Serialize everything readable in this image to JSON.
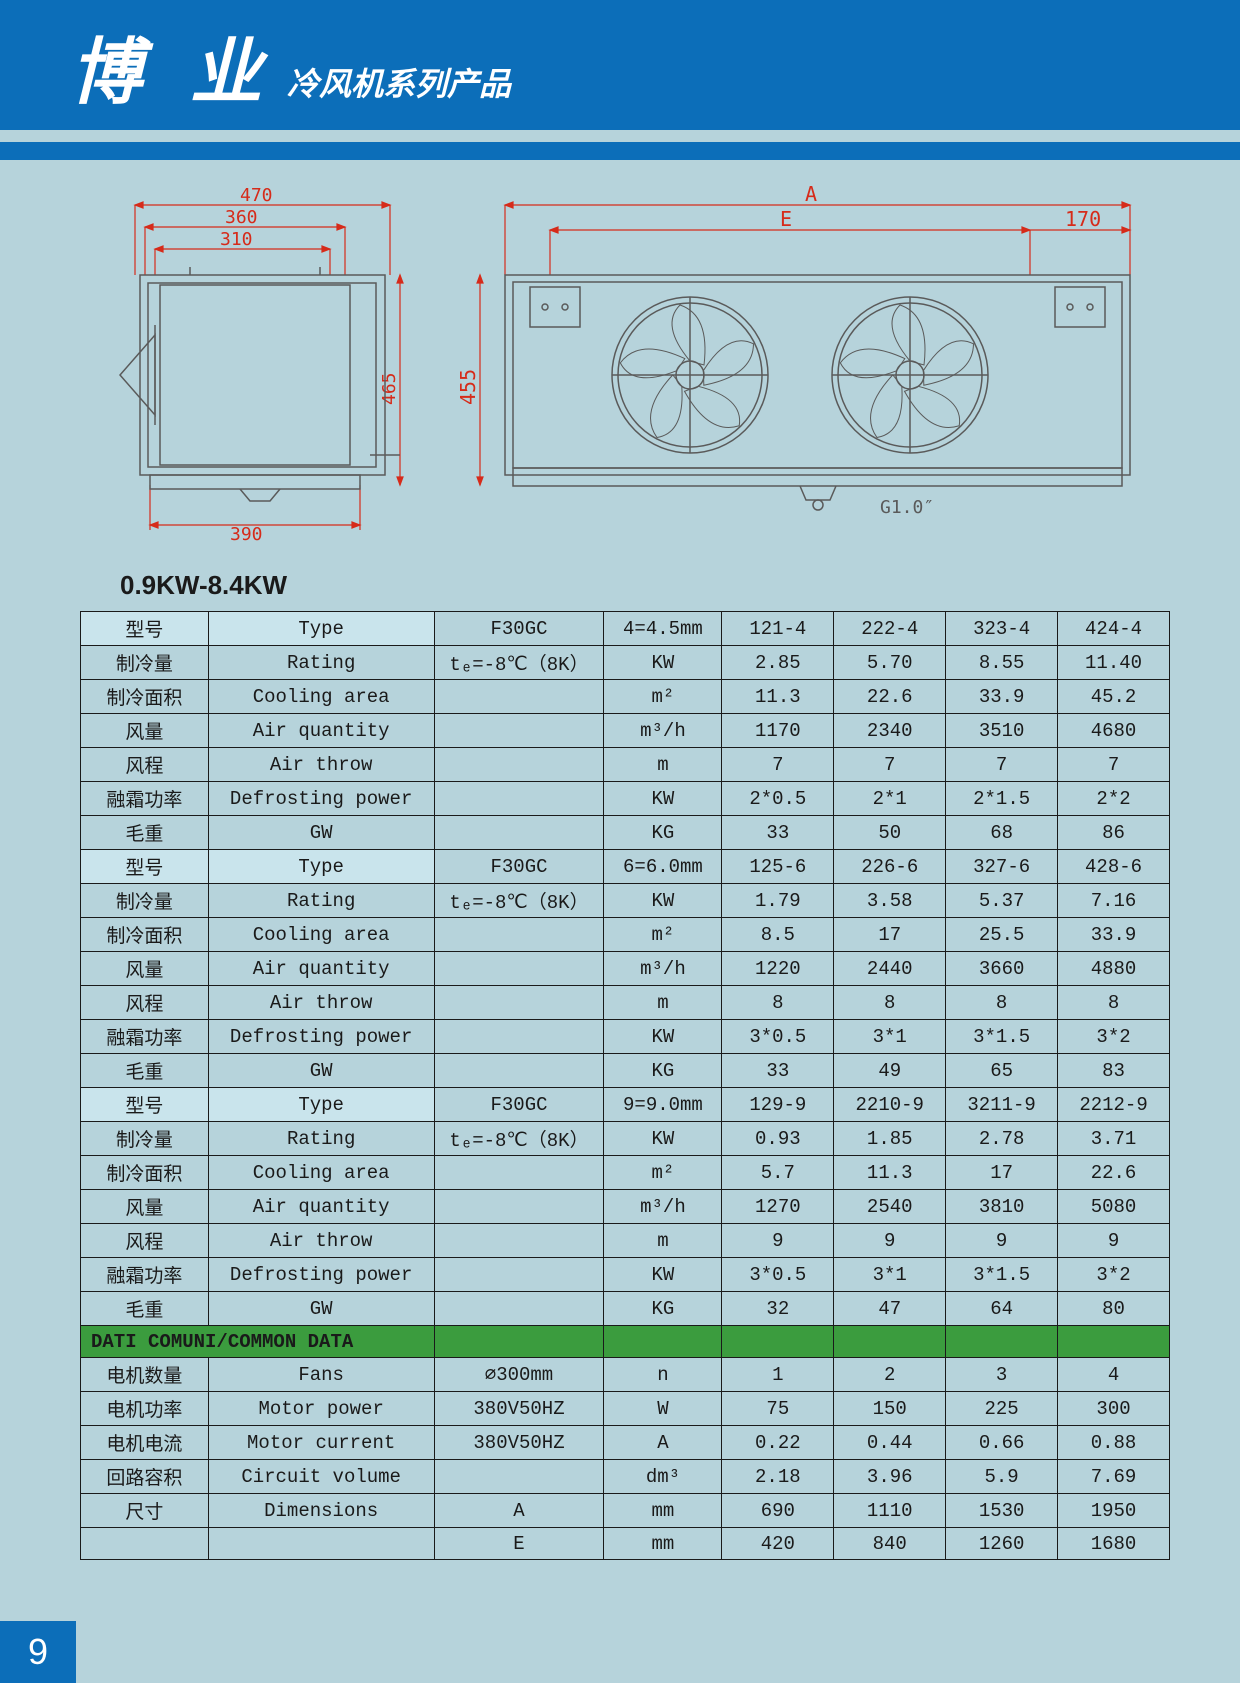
{
  "header": {
    "brand": "博 业",
    "sub": "冷风机系列产品"
  },
  "table_title": "0.9KW-8.4KW",
  "page_number": "9",
  "diagram_left": {
    "dim_470": "470",
    "dim_360": "360",
    "dim_310": "310",
    "dim_465": "465",
    "dim_390": "390"
  },
  "diagram_right": {
    "dim_A": "A",
    "dim_E": "E",
    "dim_170": "170",
    "dim_455": "455",
    "dim_G": "G1.0″"
  },
  "colors": {
    "dim_color": "#d62b1a",
    "drawing_color": "#5a5a5a",
    "header_bg": "#0c6eb9",
    "page_bg": "#b6d3db",
    "type_bg": "#c9e4ec",
    "common_bg": "#3b9c3e"
  },
  "table": {
    "rows": [
      {
        "style": "type",
        "c0": "型号",
        "c1": "Type",
        "c2": "F30GC",
        "c3": "4=4.5mm",
        "c4": "121-4",
        "c5": "222-4",
        "c6": "323-4",
        "c7": "424-4"
      },
      {
        "style": "",
        "c0": "制冷量",
        "c1": "Rating",
        "c2": "tₑ=-8℃（8K）",
        "c3": "KW",
        "c4": "2.85",
        "c5": "5.70",
        "c6": "8.55",
        "c7": "11.40"
      },
      {
        "style": "",
        "c0": "制冷面积",
        "c1": "Cooling area",
        "c2": "",
        "c3": "m²",
        "c4": "11.3",
        "c5": "22.6",
        "c6": "33.9",
        "c7": "45.2"
      },
      {
        "style": "",
        "c0": "风量",
        "c1": "Air quantity",
        "c2": "",
        "c3": "m³/h",
        "c4": "1170",
        "c5": "2340",
        "c6": "3510",
        "c7": "4680"
      },
      {
        "style": "",
        "c0": "风程",
        "c1": "Air throw",
        "c2": "",
        "c3": "m",
        "c4": "7",
        "c5": "7",
        "c6": "7",
        "c7": "7"
      },
      {
        "style": "",
        "c0": "融霜功率",
        "c1": "Defrosting power",
        "c2": "",
        "c3": "KW",
        "c4": "2*0.5",
        "c5": "2*1",
        "c6": "2*1.5",
        "c7": "2*2"
      },
      {
        "style": "",
        "c0": "毛重",
        "c1": "GW",
        "c2": "",
        "c3": "KG",
        "c4": "33",
        "c5": "50",
        "c6": "68",
        "c7": "86"
      },
      {
        "style": "type",
        "c0": "型号",
        "c1": "Type",
        "c2": "F30GC",
        "c3": "6=6.0mm",
        "c4": "125-6",
        "c5": "226-6",
        "c6": "327-6",
        "c7": "428-6"
      },
      {
        "style": "",
        "c0": "制冷量",
        "c1": "Rating",
        "c2": "tₑ=-8℃（8K）",
        "c3": "KW",
        "c4": "1.79",
        "c5": "3.58",
        "c6": "5.37",
        "c7": "7.16"
      },
      {
        "style": "",
        "c0": "制冷面积",
        "c1": "Cooling area",
        "c2": "",
        "c3": "m²",
        "c4": "8.5",
        "c5": "17",
        "c6": "25.5",
        "c7": "33.9"
      },
      {
        "style": "",
        "c0": "风量",
        "c1": "Air quantity",
        "c2": "",
        "c3": "m³/h",
        "c4": "1220",
        "c5": "2440",
        "c6": "3660",
        "c7": "4880"
      },
      {
        "style": "",
        "c0": "风程",
        "c1": "Air throw",
        "c2": "",
        "c3": "m",
        "c4": "8",
        "c5": "8",
        "c6": "8",
        "c7": "8"
      },
      {
        "style": "",
        "c0": "融霜功率",
        "c1": "Defrosting power",
        "c2": "",
        "c3": "KW",
        "c4": "3*0.5",
        "c5": "3*1",
        "c6": "3*1.5",
        "c7": "3*2"
      },
      {
        "style": "",
        "c0": "毛重",
        "c1": "GW",
        "c2": "",
        "c3": "KG",
        "c4": "33",
        "c5": "49",
        "c6": "65",
        "c7": "83"
      },
      {
        "style": "type",
        "c0": "型号",
        "c1": "Type",
        "c2": "F30GC",
        "c3": "9=9.0mm",
        "c4": "129-9",
        "c5": "2210-9",
        "c6": "3211-9",
        "c7": "2212-9"
      },
      {
        "style": "",
        "c0": "制冷量",
        "c1": "Rating",
        "c2": "tₑ=-8℃（8K）",
        "c3": "KW",
        "c4": "0.93",
        "c5": "1.85",
        "c6": "2.78",
        "c7": "3.71"
      },
      {
        "style": "",
        "c0": "制冷面积",
        "c1": "Cooling area",
        "c2": "",
        "c3": "m²",
        "c4": "5.7",
        "c5": "11.3",
        "c6": "17",
        "c7": "22.6"
      },
      {
        "style": "",
        "c0": "风量",
        "c1": "Air quantity",
        "c2": "",
        "c3": "m³/h",
        "c4": "1270",
        "c5": "2540",
        "c6": "3810",
        "c7": "5080"
      },
      {
        "style": "",
        "c0": "风程",
        "c1": "Air throw",
        "c2": "",
        "c3": "m",
        "c4": "9",
        "c5": "9",
        "c6": "9",
        "c7": "9"
      },
      {
        "style": "",
        "c0": "融霜功率",
        "c1": "Defrosting power",
        "c2": "",
        "c3": "KW",
        "c4": "3*0.5",
        "c5": "3*1",
        "c6": "3*1.5",
        "c7": "3*2"
      },
      {
        "style": "",
        "c0": "毛重",
        "c1": "GW",
        "c2": "",
        "c3": "KG",
        "c4": "32",
        "c5": "47",
        "c6": "64",
        "c7": "80"
      },
      {
        "style": "common",
        "c0": "DATI COMUNI/COMMON DATA",
        "c1": "",
        "c2": "",
        "c3": "",
        "c4": "",
        "c5": "",
        "c6": "",
        "c7": ""
      },
      {
        "style": "",
        "c0": "电机数量",
        "c1": "Fans",
        "c2": "⌀300mm",
        "c3": "n",
        "c4": "1",
        "c5": "2",
        "c6": "3",
        "c7": "4"
      },
      {
        "style": "",
        "c0": "电机功率",
        "c1": "Motor power",
        "c2": "380V50HZ",
        "c3": "W",
        "c4": "75",
        "c5": "150",
        "c6": "225",
        "c7": "300"
      },
      {
        "style": "",
        "c0": "电机电流",
        "c1": "Motor current",
        "c2": "380V50HZ",
        "c3": "A",
        "c4": "0.22",
        "c5": "0.44",
        "c6": "0.66",
        "c7": "0.88"
      },
      {
        "style": "",
        "c0": "回路容积",
        "c1": "Circuit volume",
        "c2": "",
        "c3": "dm³",
        "c4": "2.18",
        "c5": "3.96",
        "c6": "5.9",
        "c7": "7.69"
      },
      {
        "style": "",
        "c0": "尺寸",
        "c1": "Dimensions",
        "c2": "A",
        "c3": "mm",
        "c4": "690",
        "c5": "1110",
        "c6": "1530",
        "c7": "1950"
      },
      {
        "style": "",
        "c0": "",
        "c1": "",
        "c2": "E",
        "c3": "mm",
        "c4": "420",
        "c5": "840",
        "c6": "1260",
        "c7": "1680"
      }
    ]
  }
}
